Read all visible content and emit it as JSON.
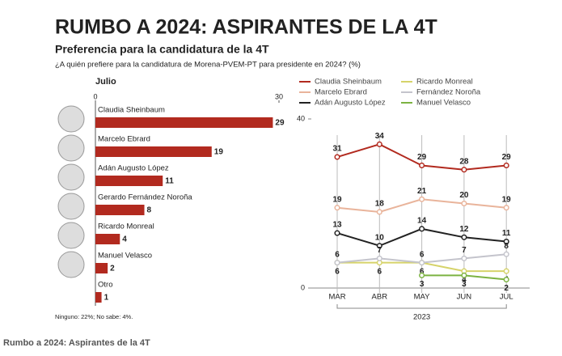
{
  "header": {
    "title": "RUMBO A 2024: ASPIRANTES DE LA 4T",
    "subtitle": "Preferencia para la candidatura de la 4T",
    "question": "¿A quién prefiere para la candidatura de Morena-PVEM-PT para presidente en 2024? (%)"
  },
  "chart_data": [
    {
      "type": "bar",
      "title": "Julio",
      "categories": [
        "Claudia Sheinbaum",
        "Marcelo Ebrard",
        "Adán Augusto López",
        "Gerardo Fernández Noroña",
        "Ricardo Monreal",
        "Manuel Velasco",
        "Otro"
      ],
      "values": [
        29,
        19,
        11,
        8,
        4,
        2,
        1
      ],
      "color": "#b22a1f",
      "xlim": [
        0,
        30
      ],
      "xticks": [
        0,
        30
      ],
      "note": "Ninguno: 22%; No sabe: 4%."
    },
    {
      "type": "line",
      "categories": [
        "MAR",
        "ABR",
        "MAY",
        "JUN",
        "JUL"
      ],
      "x_label": "2023",
      "ylim": [
        0,
        40
      ],
      "yticks": [
        0,
        40
      ],
      "series": [
        {
          "name": "Claudia Sheinbaum",
          "color": "#b22a1f",
          "values": [
            31,
            34,
            29,
            28,
            29
          ]
        },
        {
          "name": "Marcelo Ebrard",
          "color": "#e9b49b",
          "values": [
            19,
            18,
            21,
            20,
            19
          ]
        },
        {
          "name": "Adán Augusto López",
          "color": "#222222",
          "values": [
            13,
            10,
            14,
            12,
            11
          ]
        },
        {
          "name": "Ricardo Monreal",
          "color": "#d6d36a",
          "values": [
            6,
            6,
            6,
            4,
            4
          ]
        },
        {
          "name": "Fernández Noroña",
          "color": "#c4c4cc",
          "values": [
            6,
            7,
            6,
            7,
            8
          ]
        },
        {
          "name": "Manuel Velasco",
          "color": "#7cb342",
          "values": [
            null,
            null,
            3,
            3,
            2
          ]
        }
      ]
    }
  ],
  "caption": "Rumbo a 2024: Aspirantes de la 4T"
}
